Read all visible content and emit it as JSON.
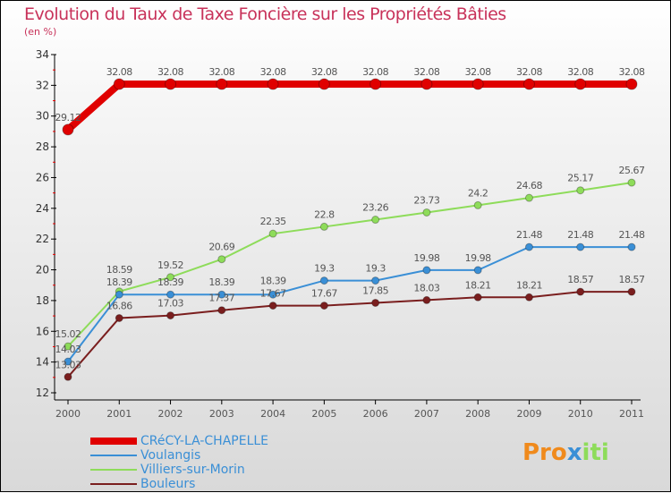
{
  "title": "Evolution du Taux de Taxe Foncière sur les Propriétés Bâties",
  "subtitle": "(en %)",
  "logo": "Proxiti",
  "chart_data": {
    "type": "line",
    "title": "Evolution du Taux de Taxe Foncière sur les Propriétés Bâties",
    "ylabel": "(en %)",
    "x": [
      2000,
      2001,
      2002,
      2003,
      2004,
      2005,
      2006,
      2007,
      2008,
      2009,
      2010,
      2011
    ],
    "ylim": [
      12,
      34
    ],
    "yticks": [
      12,
      14,
      16,
      18,
      20,
      22,
      24,
      26,
      28,
      30,
      32,
      34
    ],
    "legend_position": "bottom-left",
    "series": [
      {
        "name": "CRéCY-LA-CHAPELLE",
        "color": "#e00000",
        "values": [
          29.12,
          32.08,
          32.08,
          32.08,
          32.08,
          32.08,
          32.08,
          32.08,
          32.08,
          32.08,
          32.08,
          32.08
        ]
      },
      {
        "name": "Voulangis",
        "color": "#3a8fd6",
        "values": [
          14.03,
          18.39,
          18.39,
          18.39,
          18.39,
          19.3,
          19.3,
          19.98,
          19.98,
          21.48,
          21.48,
          21.48
        ]
      },
      {
        "name": "Villiers-sur-Morin",
        "color": "#8edc5a",
        "values": [
          15.02,
          18.59,
          19.52,
          20.69,
          22.35,
          22.8,
          23.26,
          23.73,
          24.2,
          24.68,
          25.17,
          25.67
        ]
      },
      {
        "name": "Bouleurs",
        "color": "#7a1e1e",
        "values": [
          13.03,
          16.86,
          17.03,
          17.37,
          17.67,
          17.67,
          17.85,
          18.03,
          18.21,
          18.21,
          18.57,
          18.57
        ]
      }
    ]
  }
}
